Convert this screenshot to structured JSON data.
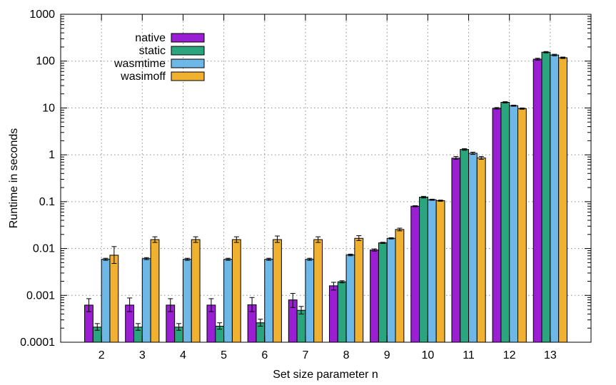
{
  "chart_data": {
    "type": "bar",
    "title": "",
    "xlabel": "Set size parameter n",
    "ylabel": "Runtime in seconds",
    "y_scale": "log",
    "ylim": [
      0.0001,
      1000
    ],
    "y_ticks": [
      "0.0001",
      "0.001",
      "0.01",
      "0.1",
      "1",
      "10",
      "100",
      "1000"
    ],
    "categories": [
      "2",
      "3",
      "4",
      "5",
      "6",
      "7",
      "8",
      "9",
      "10",
      "11",
      "12",
      "13"
    ],
    "grid": true,
    "legend_position": "top-left",
    "series": [
      {
        "name": "native",
        "color": "#9a1fd3",
        "values": [
          0.00062,
          0.00062,
          0.00062,
          0.00062,
          0.00063,
          0.0008,
          0.0016,
          0.0093,
          0.08,
          0.85,
          9.8,
          110
        ],
        "err_low": [
          0.00045,
          0.00045,
          0.00045,
          0.00045,
          0.00045,
          0.00055,
          0.0013,
          0.0088,
          0.078,
          0.8,
          9.5,
          105
        ],
        "err_high": [
          0.00085,
          0.00088,
          0.00085,
          0.00085,
          0.0009,
          0.0011,
          0.0019,
          0.0098,
          0.082,
          0.92,
          10.2,
          115
        ]
      },
      {
        "name": "static",
        "color": "#2ba57e",
        "values": [
          0.00021,
          0.00021,
          0.00021,
          0.00022,
          0.00026,
          0.00048,
          0.00195,
          0.0132,
          0.125,
          1.3,
          13.2,
          155
        ],
        "err_low": [
          0.00018,
          0.00018,
          0.00018,
          0.00019,
          0.00022,
          0.0004,
          0.00185,
          0.0128,
          0.12,
          1.25,
          12.8,
          150
        ],
        "err_high": [
          0.00025,
          0.00025,
          0.00025,
          0.00026,
          0.00031,
          0.00058,
          0.00205,
          0.0136,
          0.13,
          1.35,
          13.6,
          160
        ]
      },
      {
        "name": "wasmtime",
        "color": "#6db8e6",
        "values": [
          0.0059,
          0.0061,
          0.0059,
          0.0059,
          0.0059,
          0.0059,
          0.0073,
          0.0165,
          0.11,
          1.08,
          11.2,
          135
        ],
        "err_low": [
          0.0056,
          0.0058,
          0.0056,
          0.0056,
          0.0056,
          0.0056,
          0.007,
          0.016,
          0.107,
          1.02,
          10.9,
          130
        ],
        "err_high": [
          0.0062,
          0.0064,
          0.0062,
          0.0062,
          0.0062,
          0.0062,
          0.0076,
          0.017,
          0.113,
          1.14,
          11.5,
          140
        ]
      },
      {
        "name": "wasimoff",
        "color": "#f0b030",
        "values": [
          0.0072,
          0.0155,
          0.0155,
          0.0155,
          0.0155,
          0.0155,
          0.0165,
          0.0255,
          0.105,
          0.86,
          9.7,
          118
        ],
        "err_low": [
          0.0048,
          0.0135,
          0.0135,
          0.0135,
          0.0135,
          0.0135,
          0.0148,
          0.0238,
          0.102,
          0.8,
          9.4,
          114
        ],
        "err_high": [
          0.011,
          0.0178,
          0.0178,
          0.0178,
          0.0185,
          0.0178,
          0.0188,
          0.0272,
          0.108,
          0.92,
          10.0,
          122
        ]
      }
    ]
  }
}
